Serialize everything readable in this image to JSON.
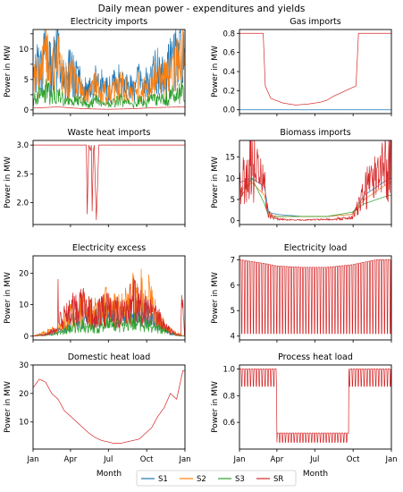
{
  "figure": {
    "title": "Daily mean power - expenditures and yields",
    "legend": [
      {
        "name": "S1",
        "color": "#1f77b4"
      },
      {
        "name": "S2",
        "color": "#ff7f0e"
      },
      {
        "name": "S3",
        "color": "#2ca02c"
      },
      {
        "name": "SR",
        "color": "#d62728"
      }
    ],
    "month_labels": [
      "Jan",
      "Apr",
      "Jul",
      "Oct",
      "Jan"
    ],
    "xlabel": "Month",
    "ylabel": "Power in MW"
  },
  "chart_data": [
    {
      "type": "line",
      "title": "Electricity imports",
      "xlabel": "",
      "ylabel": "Power in MW",
      "xlim": [
        0,
        365
      ],
      "ylim": [
        -0.6,
        13.2
      ],
      "yticks": [
        0,
        2.5,
        5,
        7.5,
        10,
        12.5
      ],
      "ytick_labels": [
        "0",
        "",
        "5",
        "",
        "10",
        ""
      ],
      "series": [
        {
          "name": "S1",
          "approx": "spiky daily profile 0-12.5 MW; higher in winter/spring (Jan-Mar) and late autumn (Oct-Dec), around 3-6 MW in summer",
          "x": [
            0,
            15,
            30,
            45,
            60,
            75,
            90,
            105,
            120,
            135,
            150,
            165,
            180,
            195,
            210,
            225,
            240,
            255,
            270,
            285,
            300,
            315,
            330,
            345,
            360
          ],
          "values": [
            6,
            9,
            10,
            8,
            11,
            7,
            8,
            6,
            5,
            4,
            6,
            5,
            4,
            5,
            6,
            5,
            4,
            6,
            5,
            7,
            8,
            7,
            9,
            10,
            11
          ]
        },
        {
          "name": "S2",
          "approx": "spiky, up to ~12.5 MW early Jan and late Dec",
          "x": [
            0,
            15,
            30,
            45,
            60,
            75,
            90,
            105,
            120,
            135,
            150,
            165,
            180,
            195,
            210,
            225,
            240,
            255,
            270,
            285,
            300,
            315,
            330,
            345,
            360
          ],
          "values": [
            5,
            8,
            12,
            7,
            10,
            6,
            7,
            5,
            4,
            3,
            5,
            4,
            3,
            4,
            5,
            4,
            3,
            5,
            4,
            6,
            7,
            6,
            8,
            9,
            12
          ]
        },
        {
          "name": "S3",
          "approx": "lower spiky profile, mostly below 4 MW",
          "x": [
            0,
            15,
            30,
            45,
            60,
            75,
            90,
            105,
            120,
            135,
            150,
            165,
            180,
            195,
            210,
            225,
            240,
            255,
            270,
            285,
            300,
            315,
            330,
            345,
            360
          ],
          "values": [
            2,
            3,
            4,
            3,
            3,
            2,
            2,
            2,
            1.5,
            1,
            2,
            1.5,
            1,
            1.5,
            2,
            1.5,
            1,
            2,
            1.5,
            2,
            2.5,
            2,
            3,
            3,
            4
          ]
        },
        {
          "name": "SR",
          "approx": "near zero with occasional small spikes",
          "x": [
            0,
            60,
            120,
            180,
            240,
            300,
            360
          ],
          "values": [
            0.3,
            0.5,
            0.2,
            0.1,
            0.2,
            0.4,
            0.5
          ]
        }
      ]
    },
    {
      "type": "line",
      "title": "Gas imports",
      "xlabel": "",
      "ylabel": "Power in MW",
      "xlim": [
        0,
        365
      ],
      "ylim": [
        -0.04,
        0.84
      ],
      "yticks": [
        0,
        0.2,
        0.4,
        0.6,
        0.8
      ],
      "ytick_labels": [
        "0.0",
        "0.2",
        "0.4",
        "0.6",
        "0.8"
      ],
      "series": [
        {
          "name": "SR",
          "approx": "0.62-0.8 MW in winter (until ~day 58 and after ~day 285), drop to ~0.05-0.25 MW in summer, with rising ramp from ~day 210",
          "x": [
            0,
            30,
            57,
            62,
            75,
            105,
            135,
            165,
            195,
            210,
            225,
            240,
            255,
            270,
            280,
            286,
            300,
            330,
            364
          ],
          "values": [
            0.8,
            0.8,
            0.8,
            0.25,
            0.12,
            0.07,
            0.05,
            0.06,
            0.08,
            0.1,
            0.14,
            0.17,
            0.2,
            0.23,
            0.25,
            0.8,
            0.8,
            0.8,
            0.8
          ]
        },
        {
          "name": "S1",
          "approx": "zero all year",
          "x": [
            0,
            364
          ],
          "values": [
            0,
            0
          ]
        }
      ]
    },
    {
      "type": "line",
      "title": "Waste heat imports",
      "xlabel": "",
      "ylabel": "Power in MW",
      "xlim": [
        0,
        365
      ],
      "ylim": [
        1.62,
        3.08
      ],
      "yticks": [
        2.0,
        2.5,
        3.0
      ],
      "ytick_labels": [
        "2.0",
        "2.5",
        "3.0"
      ],
      "series": [
        {
          "name": "SR",
          "approx": "constant 3.0 MW with outage dips to ~1.7-1.8 MW around days 130-160",
          "x": [
            0,
            128,
            130,
            134,
            138,
            140,
            142,
            145,
            147,
            150,
            152,
            155,
            158,
            160,
            364
          ],
          "values": [
            3.0,
            3.0,
            1.8,
            3.0,
            2.9,
            3.0,
            1.85,
            2.9,
            3.0,
            2.2,
            1.7,
            2.3,
            3.0,
            3.0,
            3.0
          ]
        }
      ]
    },
    {
      "type": "line",
      "title": "Biomass imports",
      "xlabel": "",
      "ylabel": "Power in MW",
      "xlim": [
        0,
        365
      ],
      "ylim": [
        -0.9,
        18.9
      ],
      "yticks": [
        0,
        5,
        10,
        15
      ],
      "ytick_labels": [
        "0",
        "5",
        "10",
        "15"
      ],
      "series": [
        {
          "name": "SR",
          "approx": "spiky 2-18 MW in winter (Jan-Mar, Oct-Dec), about 0-1 MW in summer",
          "x": [
            0,
            15,
            30,
            45,
            60,
            70,
            90,
            120,
            150,
            180,
            210,
            240,
            270,
            285,
            300,
            315,
            330,
            345,
            360
          ],
          "values": [
            8,
            14,
            18,
            12,
            10,
            2,
            0.5,
            0.3,
            0.2,
            0.3,
            0.4,
            0.6,
            1,
            4,
            9,
            10,
            12,
            14,
            16
          ]
        },
        {
          "name": "S1",
          "approx": "similar, with plateau around 1-2 MW in spring",
          "x": [
            0,
            30,
            60,
            70,
            90,
            150,
            210,
            270,
            300,
            330,
            360
          ],
          "values": [
            9,
            10,
            8,
            2,
            1.5,
            1,
            1,
            1.5,
            6,
            8,
            10
          ]
        },
        {
          "name": "S2",
          "approx": "similar winter levels",
          "x": [
            0,
            30,
            60,
            70,
            90,
            150,
            210,
            270,
            300,
            330,
            360
          ],
          "values": [
            7,
            9,
            6,
            1.5,
            1,
            1,
            1,
            1.5,
            5,
            7,
            9
          ]
        },
        {
          "name": "S3",
          "approx": "blocky ~2-10 MW in winter, ~1 MW in summer",
          "x": [
            0,
            30,
            60,
            70,
            90,
            150,
            210,
            270,
            300,
            330,
            360
          ],
          "values": [
            5,
            10,
            4,
            1,
            1,
            1,
            1,
            2,
            4,
            5,
            6
          ]
        }
      ]
    },
    {
      "type": "line",
      "title": "Electricity excess",
      "xlabel": "",
      "ylabel": "Power in MW",
      "xlim": [
        0,
        365
      ],
      "ylim": [
        -1.2,
        25.5
      ],
      "yticks": [
        0,
        10,
        20
      ],
      "ytick_labels": [
        "0",
        "10",
        "20"
      ],
      "series": [
        {
          "name": "SR",
          "approx": "near zero in Jan, spikes up to ~25 MW around day 60, frequent 2-15 MW spikes Apr-Nov, ~16 MW at end of Dec",
          "x": [
            0,
            30,
            58,
            60,
            62,
            90,
            120,
            150,
            180,
            210,
            240,
            270,
            300,
            330,
            355,
            358,
            360,
            364
          ],
          "values": [
            0,
            0.5,
            3,
            25,
            5,
            10,
            12,
            8,
            11,
            9,
            14,
            10,
            7,
            2,
            0,
            16,
            17,
            0
          ]
        },
        {
          "name": "S1",
          "approx": "spikes up to ~12 MW in summer",
          "x": [
            0,
            60,
            90,
            120,
            150,
            180,
            210,
            240,
            270,
            300,
            330,
            364
          ],
          "values": [
            0,
            2,
            6,
            8,
            7,
            9,
            8,
            10,
            9,
            5,
            1,
            0
          ]
        },
        {
          "name": "S2",
          "approx": "spikes up to ~18 MW in summer",
          "x": [
            0,
            60,
            90,
            120,
            150,
            180,
            210,
            240,
            270,
            300,
            330,
            364
          ],
          "values": [
            0,
            3,
            8,
            10,
            9,
            13,
            10,
            15,
            18,
            6,
            2,
            0
          ]
        },
        {
          "name": "S3",
          "approx": "smaller spikes",
          "x": [
            0,
            60,
            90,
            120,
            150,
            180,
            210,
            240,
            270,
            300,
            330,
            364
          ],
          "values": [
            0,
            1,
            3,
            4,
            3,
            5,
            4,
            6,
            5,
            3,
            1,
            0
          ]
        }
      ]
    },
    {
      "type": "line",
      "title": "Electricity load",
      "xlabel": "",
      "ylabel": "Power in MW",
      "xlim": [
        0,
        365
      ],
      "ylim": [
        3.85,
        7.15
      ],
      "yticks": [
        4,
        5,
        6,
        7
      ],
      "ytick_labels": [
        "4",
        "5",
        "6",
        "7"
      ],
      "series": [
        {
          "name": "SR",
          "approx": "weekly cycle: weekday plateau ~7.0 (winter) / ~6.7-6.8 (summer), weekend drops to ~4.1 MW",
          "x": [
            0,
            60,
            90,
            150,
            210,
            270,
            330,
            364
          ],
          "weekday_values": [
            7.0,
            6.85,
            6.75,
            6.7,
            6.7,
            6.8,
            7.0,
            7.0
          ],
          "weekend_value": 4.1
        }
      ]
    },
    {
      "type": "line",
      "title": "Domestic heat load",
      "xlabel": "Month",
      "ylabel": "Power in MW",
      "xlim": [
        0,
        365
      ],
      "ylim": [
        0.5,
        30
      ],
      "yticks": [
        10,
        20,
        30
      ],
      "ytick_labels": [
        "10",
        "20",
        "30"
      ],
      "series": [
        {
          "name": "SR",
          "approx": "U-shaped seasonal load: ~15-28 MW in Jan, declining to ~2-5 MW in Jul, rising to ~29 MW at end of Dec",
          "x": [
            0,
            15,
            30,
            45,
            60,
            75,
            90,
            105,
            120,
            135,
            150,
            165,
            180,
            195,
            210,
            225,
            240,
            255,
            270,
            285,
            300,
            315,
            330,
            345,
            360
          ],
          "values": [
            22,
            25,
            24,
            20,
            18,
            14,
            12,
            10,
            8,
            6,
            4.5,
            3.5,
            3,
            2.5,
            2.5,
            3,
            3.5,
            4,
            6,
            8,
            12,
            15,
            20,
            18,
            28
          ]
        }
      ]
    },
    {
      "type": "line",
      "title": "Process heat load",
      "xlabel": "Month",
      "ylabel": "Power in MW",
      "xlim": [
        0,
        365
      ],
      "ylim": [
        0.4,
        1.03
      ],
      "yticks": [
        0.6,
        0.8,
        1.0
      ],
      "ytick_labels": [
        "0.6",
        "0.8",
        "1.0"
      ],
      "series": [
        {
          "name": "SR",
          "approx": "weekly cycle 0.87-1.0 MW in winter, ~0.45-0.52 MW in summer (days ~90-262)",
          "x": [
            0,
            89,
            90,
            262,
            263,
            364
          ],
          "high_values": [
            1.0,
            1.0,
            0.52,
            0.52,
            1.0,
            1.0
          ],
          "low_values": [
            0.87,
            0.87,
            0.45,
            0.45,
            0.87,
            0.87
          ]
        }
      ]
    }
  ]
}
